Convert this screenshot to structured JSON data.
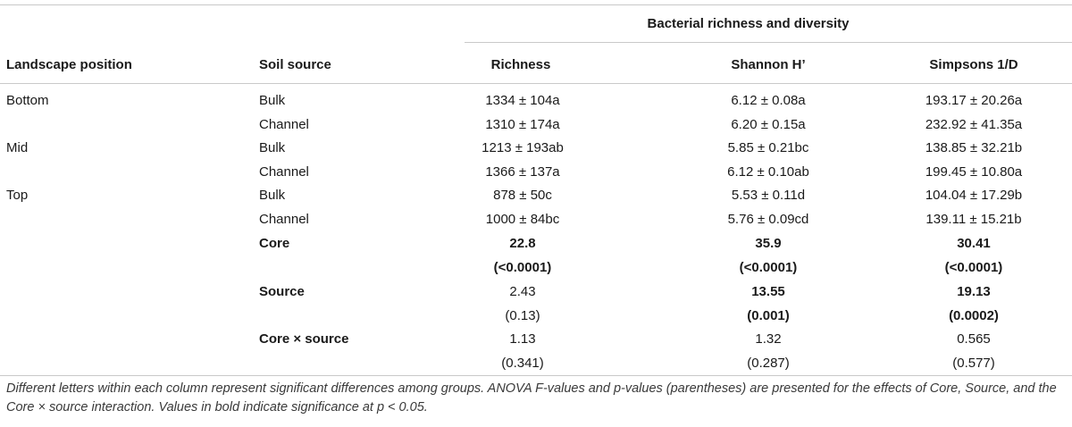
{
  "group_header": "Bacterial richness and diversity",
  "columns": {
    "landscape": "Landscape position",
    "soil": "Soil source",
    "richness": "Richness",
    "shannon": "Shannon H’",
    "simpsons": "Simpsons 1/D"
  },
  "rows": [
    {
      "landscape": "Bottom",
      "soil": "Bulk",
      "richness": "1334 ± 104a",
      "shannon": "6.12 ± 0.08a",
      "simpsons": "193.17 ± 20.26a"
    },
    {
      "landscape": "",
      "soil": "Channel",
      "richness": "1310 ± 174a",
      "shannon": "6.20 ± 0.15a",
      "simpsons": "232.92 ± 41.35a"
    },
    {
      "landscape": "Mid",
      "soil": "Bulk",
      "richness": "1213 ± 193ab",
      "shannon": "5.85 ± 0.21bc",
      "simpsons": "138.85 ± 32.21b"
    },
    {
      "landscape": "",
      "soil": "Channel",
      "richness": "1366 ± 137a",
      "shannon": "6.12 ± 0.10ab",
      "simpsons": "199.45 ± 10.80a"
    },
    {
      "landscape": "Top",
      "soil": "Bulk",
      "richness": "878 ± 50c",
      "shannon": "5.53 ± 0.11d",
      "simpsons": "104.04 ± 17.29b"
    },
    {
      "landscape": "",
      "soil": "Channel",
      "richness": "1000 ± 84bc",
      "shannon": "5.76 ± 0.09cd",
      "simpsons": "139.11 ± 15.21b"
    }
  ],
  "anova": [
    {
      "label": "Core",
      "richness_f": "22.8",
      "richness_p": "(<0.0001)",
      "shannon_f": "35.9",
      "shannon_p": "(<0.0001)",
      "simpsons_f": "30.41",
      "simpsons_p": "(<0.0001)"
    },
    {
      "label": "Source",
      "richness_f": "2.43",
      "richness_p": "(0.13)",
      "shannon_f": "13.55",
      "shannon_p": "(0.001)",
      "simpsons_f": "19.13",
      "simpsons_p": "(0.0002)"
    },
    {
      "label": "Core × source",
      "richness_f": "1.13",
      "richness_p": "(0.341)",
      "shannon_f": "1.32",
      "shannon_p": "(0.287)",
      "simpsons_f": "0.565",
      "simpsons_p": "(0.577)"
    }
  ],
  "caption": "Different letters within each column represent significant differences among groups. ANOVA F-values and p-values (parentheses) are presented for the effects of Core, Source, and the Core × source interaction. Values in bold indicate significance at p < 0.05."
}
